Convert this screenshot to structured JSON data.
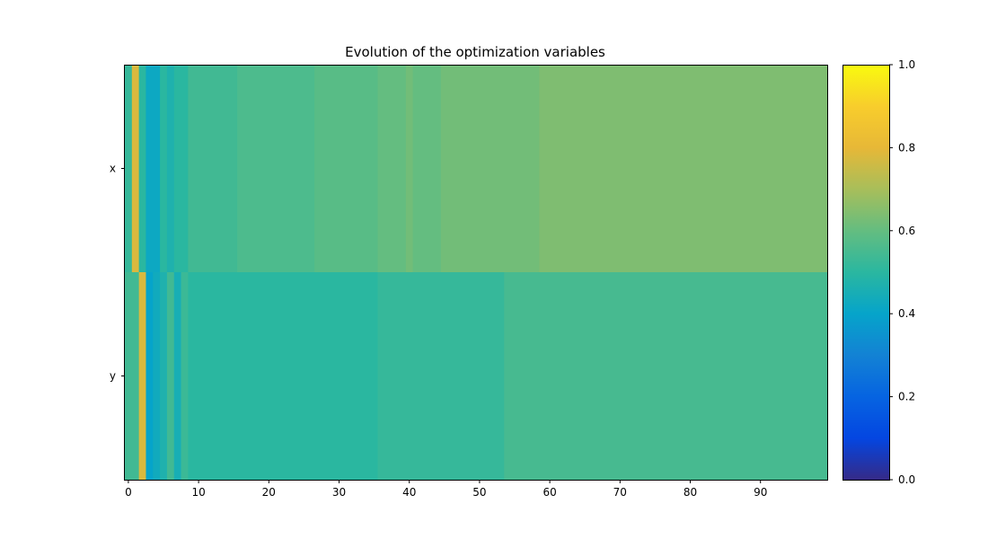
{
  "chart_data": {
    "type": "heatmap",
    "title": "Evolution of the optimization variables",
    "rows": [
      "x",
      "y"
    ],
    "x_ticks": [
      0,
      10,
      20,
      30,
      40,
      50,
      60,
      70,
      80,
      90
    ],
    "x_range": [
      -0.5,
      99.5
    ],
    "colorbar": {
      "range": [
        0,
        1
      ],
      "ticks": [
        "0.0",
        "0.2",
        "0.4",
        "0.6",
        "0.8",
        "1.0"
      ],
      "colormap": "parula"
    },
    "grid": false,
    "segments": {
      "x": [
        {
          "from": 0,
          "to": 0,
          "value": 0.52
        },
        {
          "from": 1,
          "to": 1,
          "value": 0.78
        },
        {
          "from": 2,
          "to": 2,
          "value": 0.5
        },
        {
          "from": 3,
          "to": 4,
          "value": 0.42
        },
        {
          "from": 5,
          "to": 5,
          "value": 0.5
        },
        {
          "from": 6,
          "to": 6,
          "value": 0.47
        },
        {
          "from": 7,
          "to": 8,
          "value": 0.5
        },
        {
          "from": 9,
          "to": 15,
          "value": 0.54
        },
        {
          "from": 16,
          "to": 26,
          "value": 0.56
        },
        {
          "from": 27,
          "to": 35,
          "value": 0.58
        },
        {
          "from": 36,
          "to": 39,
          "value": 0.6
        },
        {
          "from": 40,
          "to": 40,
          "value": 0.62
        },
        {
          "from": 41,
          "to": 44,
          "value": 0.6
        },
        {
          "from": 45,
          "to": 58,
          "value": 0.62
        },
        {
          "from": 59,
          "to": 99,
          "value": 0.64
        }
      ],
      "y": [
        {
          "from": 0,
          "to": 1,
          "value": 0.54
        },
        {
          "from": 2,
          "to": 2,
          "value": 0.78
        },
        {
          "from": 3,
          "to": 3,
          "value": 0.4
        },
        {
          "from": 4,
          "to": 4,
          "value": 0.43
        },
        {
          "from": 5,
          "to": 5,
          "value": 0.47
        },
        {
          "from": 6,
          "to": 6,
          "value": 0.54
        },
        {
          "from": 7,
          "to": 7,
          "value": 0.45
        },
        {
          "from": 8,
          "to": 8,
          "value": 0.53
        },
        {
          "from": 9,
          "to": 35,
          "value": 0.5
        },
        {
          "from": 36,
          "to": 53,
          "value": 0.52
        },
        {
          "from": 54,
          "to": 99,
          "value": 0.55
        }
      ]
    }
  }
}
